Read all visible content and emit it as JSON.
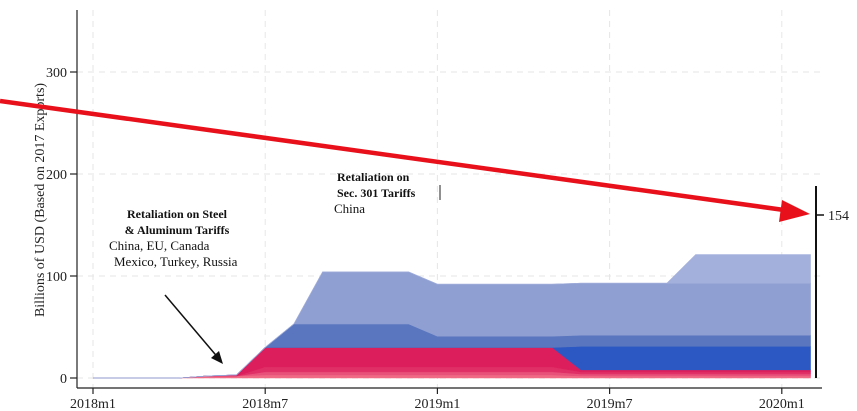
{
  "chart_data": {
    "type": "area",
    "ylabel": "Billions of USD (Based on 2017 Exports)",
    "x_ticks": [
      "2018m1",
      "2018m7",
      "2019m1",
      "2019m7",
      "2020m1"
    ],
    "x": [
      "2018m1",
      "2018m2",
      "2018m3",
      "2018m4",
      "2018m5",
      "2018m6",
      "2018m7",
      "2018m8",
      "2018m9",
      "2018m10",
      "2018m11",
      "2018m12",
      "2019m1",
      "2019m2",
      "2019m3",
      "2019m4",
      "2019m5",
      "2019m6",
      "2019m7",
      "2019m8",
      "2019m9",
      "2019m10",
      "2019m11",
      "2019m12",
      "2020m1",
      "2020m2"
    ],
    "ylim": [
      0,
      370
    ],
    "y_ticks": [
      0,
      100,
      200,
      300
    ],
    "grid": true,
    "series": [
      {
        "color": "#f06a86",
        "values": [
          0,
          0,
          0,
          0,
          2,
          2,
          3,
          3,
          3,
          3,
          3,
          3,
          3,
          3,
          3,
          3,
          3,
          2,
          2,
          2,
          2,
          2,
          2,
          2,
          2,
          2
        ]
      },
      {
        "color": "#e8517a",
        "values": [
          0,
          0,
          0,
          0,
          0,
          0,
          3,
          3,
          3,
          3,
          3,
          3,
          3,
          3,
          3,
          3,
          3,
          2,
          2,
          2,
          2,
          2,
          2,
          2,
          2,
          2
        ]
      },
      {
        "color": "#df2f66",
        "values": [
          0,
          0,
          0,
          0,
          0,
          0,
          5,
          5,
          5,
          5,
          5,
          5,
          5,
          5,
          5,
          5,
          5,
          2,
          2,
          2,
          2,
          2,
          2,
          2,
          2,
          2
        ]
      },
      {
        "color": "#dc1f5c",
        "values": [
          0,
          0,
          0,
          0,
          0,
          1,
          19,
          19,
          19,
          19,
          19,
          19,
          19,
          19,
          19,
          19,
          19,
          2,
          2,
          2,
          2,
          2,
          2,
          2,
          2,
          2
        ]
      },
      {
        "color": "#2b58c2",
        "values": [
          0,
          0,
          0,
          0,
          0,
          0,
          0,
          0,
          0,
          0,
          0,
          0,
          0,
          0,
          0,
          0,
          0,
          23,
          23,
          23,
          23,
          23,
          23,
          23,
          23,
          23
        ]
      },
      {
        "color": "#5a76bf",
        "values": [
          0,
          0,
          0,
          0,
          0,
          0,
          0,
          23,
          23,
          23,
          23,
          23,
          11,
          11,
          11,
          11,
          11,
          11,
          11,
          11,
          11,
          11,
          11,
          11,
          11,
          11
        ]
      },
      {
        "color": "#8f9fd2",
        "values": [
          0,
          0,
          0,
          0,
          0,
          0,
          0,
          0,
          51,
          51,
          51,
          51,
          51,
          51,
          51,
          51,
          51,
          51,
          51,
          51,
          51,
          51,
          51,
          51,
          51,
          51
        ]
      },
      {
        "color": "#a4b0dc",
        "values": [
          0,
          0,
          0,
          0,
          0,
          0,
          0,
          0,
          0,
          0,
          0,
          0,
          0,
          0,
          0,
          0,
          0,
          0,
          0,
          0,
          0,
          28,
          28,
          28,
          28,
          28
        ]
      }
    ],
    "annotations": [
      {
        "lines": [
          "Retaliation on Steel",
          "& Aluminum Tariffs"
        ],
        "detail": [
          "China, EU, Canada",
          "Mexico, Turkey, Russia"
        ]
      },
      {
        "lines": [
          "Retaliation on",
          "Sec. 301 Tariffs"
        ],
        "detail": [
          "China"
        ]
      }
    ],
    "marker_label": "154",
    "marker_value": 154,
    "arrow_color": "#e8101a"
  }
}
